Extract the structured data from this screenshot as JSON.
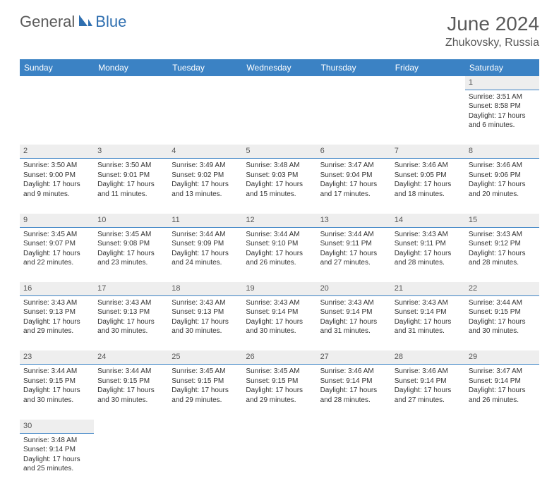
{
  "logo": {
    "text1": "General",
    "text2": "Blue"
  },
  "title": "June 2024",
  "location": "Zhukovsky, Russia",
  "colors": {
    "header_bg": "#3b82c4",
    "header_text": "#ffffff",
    "daynum_bg": "#eeeeee",
    "border": "#3b82c4",
    "logo_gray": "#5a5a5a",
    "logo_blue": "#2f6fb0"
  },
  "day_headers": [
    "Sunday",
    "Monday",
    "Tuesday",
    "Wednesday",
    "Thursday",
    "Friday",
    "Saturday"
  ],
  "weeks": [
    {
      "nums": [
        "",
        "",
        "",
        "",
        "",
        "",
        "1"
      ],
      "cells": [
        null,
        null,
        null,
        null,
        null,
        null,
        {
          "sunrise": "3:51 AM",
          "sunset": "8:58 PM",
          "daylight": "17 hours and 6 minutes."
        }
      ]
    },
    {
      "nums": [
        "2",
        "3",
        "4",
        "5",
        "6",
        "7",
        "8"
      ],
      "cells": [
        {
          "sunrise": "3:50 AM",
          "sunset": "9:00 PM",
          "daylight": "17 hours and 9 minutes."
        },
        {
          "sunrise": "3:50 AM",
          "sunset": "9:01 PM",
          "daylight": "17 hours and 11 minutes."
        },
        {
          "sunrise": "3:49 AM",
          "sunset": "9:02 PM",
          "daylight": "17 hours and 13 minutes."
        },
        {
          "sunrise": "3:48 AM",
          "sunset": "9:03 PM",
          "daylight": "17 hours and 15 minutes."
        },
        {
          "sunrise": "3:47 AM",
          "sunset": "9:04 PM",
          "daylight": "17 hours and 17 minutes."
        },
        {
          "sunrise": "3:46 AM",
          "sunset": "9:05 PM",
          "daylight": "17 hours and 18 minutes."
        },
        {
          "sunrise": "3:46 AM",
          "sunset": "9:06 PM",
          "daylight": "17 hours and 20 minutes."
        }
      ]
    },
    {
      "nums": [
        "9",
        "10",
        "11",
        "12",
        "13",
        "14",
        "15"
      ],
      "cells": [
        {
          "sunrise": "3:45 AM",
          "sunset": "9:07 PM",
          "daylight": "17 hours and 22 minutes."
        },
        {
          "sunrise": "3:45 AM",
          "sunset": "9:08 PM",
          "daylight": "17 hours and 23 minutes."
        },
        {
          "sunrise": "3:44 AM",
          "sunset": "9:09 PM",
          "daylight": "17 hours and 24 minutes."
        },
        {
          "sunrise": "3:44 AM",
          "sunset": "9:10 PM",
          "daylight": "17 hours and 26 minutes."
        },
        {
          "sunrise": "3:44 AM",
          "sunset": "9:11 PM",
          "daylight": "17 hours and 27 minutes."
        },
        {
          "sunrise": "3:43 AM",
          "sunset": "9:11 PM",
          "daylight": "17 hours and 28 minutes."
        },
        {
          "sunrise": "3:43 AM",
          "sunset": "9:12 PM",
          "daylight": "17 hours and 28 minutes."
        }
      ]
    },
    {
      "nums": [
        "16",
        "17",
        "18",
        "19",
        "20",
        "21",
        "22"
      ],
      "cells": [
        {
          "sunrise": "3:43 AM",
          "sunset": "9:13 PM",
          "daylight": "17 hours and 29 minutes."
        },
        {
          "sunrise": "3:43 AM",
          "sunset": "9:13 PM",
          "daylight": "17 hours and 30 minutes."
        },
        {
          "sunrise": "3:43 AM",
          "sunset": "9:13 PM",
          "daylight": "17 hours and 30 minutes."
        },
        {
          "sunrise": "3:43 AM",
          "sunset": "9:14 PM",
          "daylight": "17 hours and 30 minutes."
        },
        {
          "sunrise": "3:43 AM",
          "sunset": "9:14 PM",
          "daylight": "17 hours and 31 minutes."
        },
        {
          "sunrise": "3:43 AM",
          "sunset": "9:14 PM",
          "daylight": "17 hours and 31 minutes."
        },
        {
          "sunrise": "3:44 AM",
          "sunset": "9:15 PM",
          "daylight": "17 hours and 30 minutes."
        }
      ]
    },
    {
      "nums": [
        "23",
        "24",
        "25",
        "26",
        "27",
        "28",
        "29"
      ],
      "cells": [
        {
          "sunrise": "3:44 AM",
          "sunset": "9:15 PM",
          "daylight": "17 hours and 30 minutes."
        },
        {
          "sunrise": "3:44 AM",
          "sunset": "9:15 PM",
          "daylight": "17 hours and 30 minutes."
        },
        {
          "sunrise": "3:45 AM",
          "sunset": "9:15 PM",
          "daylight": "17 hours and 29 minutes."
        },
        {
          "sunrise": "3:45 AM",
          "sunset": "9:15 PM",
          "daylight": "17 hours and 29 minutes."
        },
        {
          "sunrise": "3:46 AM",
          "sunset": "9:14 PM",
          "daylight": "17 hours and 28 minutes."
        },
        {
          "sunrise": "3:46 AM",
          "sunset": "9:14 PM",
          "daylight": "17 hours and 27 minutes."
        },
        {
          "sunrise": "3:47 AM",
          "sunset": "9:14 PM",
          "daylight": "17 hours and 26 minutes."
        }
      ]
    },
    {
      "nums": [
        "30",
        "",
        "",
        "",
        "",
        "",
        ""
      ],
      "cells": [
        {
          "sunrise": "3:48 AM",
          "sunset": "9:14 PM",
          "daylight": "17 hours and 25 minutes."
        },
        null,
        null,
        null,
        null,
        null,
        null
      ]
    }
  ],
  "labels": {
    "sunrise": "Sunrise: ",
    "sunset": "Sunset: ",
    "daylight": "Daylight: "
  }
}
